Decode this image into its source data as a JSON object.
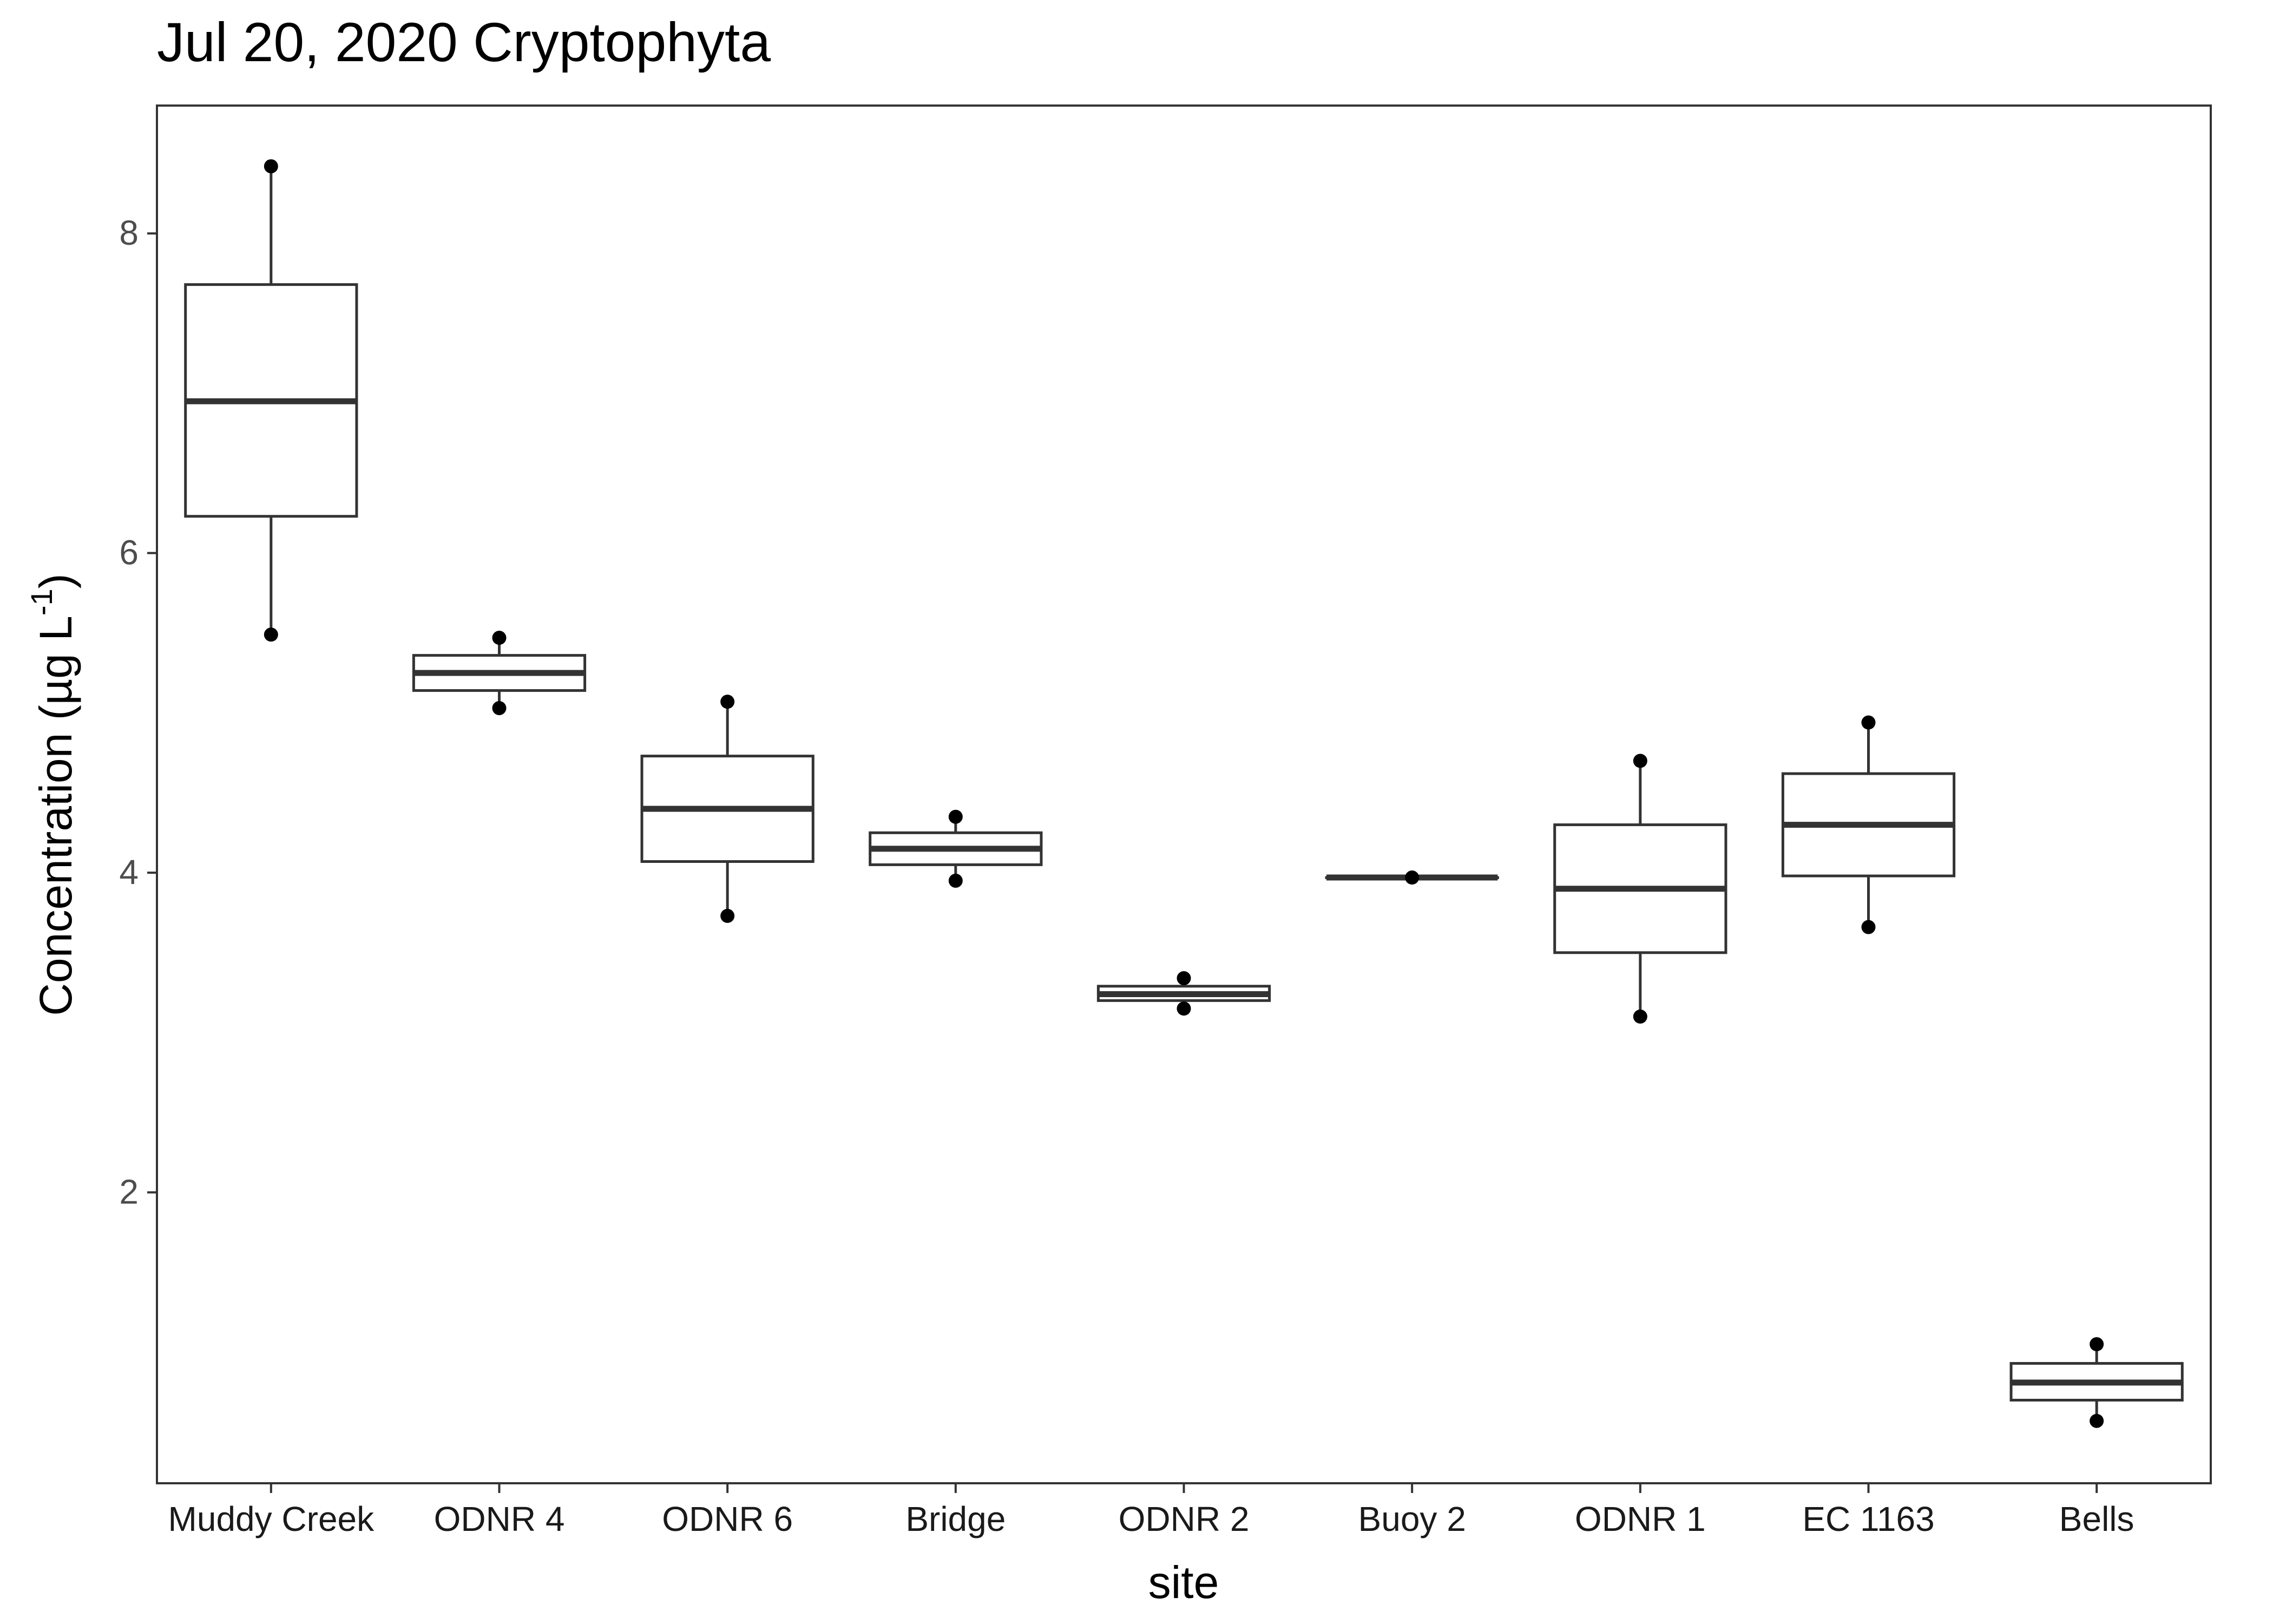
{
  "chart_data": {
    "type": "box",
    "title": "Jul 20, 2020 Cryptophyta",
    "xlabel": "site",
    "ylabel": {
      "main": "Concentration (µg L",
      "superscript": "-1",
      "close": ")"
    },
    "y_ticks": [
      2,
      4,
      6,
      8
    ],
    "y_tick_labels": [
      "2",
      "4",
      "6",
      "8"
    ],
    "ylim": [
      0.18,
      8.8
    ],
    "grid": false,
    "categories": [
      "Muddy Creek",
      "ODNR 4",
      "ODNR 6",
      "Bridge",
      "ODNR 2",
      "Buoy 2",
      "ODNR 1",
      "EC 1163",
      "Bells"
    ],
    "boxes": [
      {
        "site": "Muddy Creek",
        "min": 5.49,
        "q1": 6.23,
        "median": 6.95,
        "q3": 7.68,
        "max": 8.42,
        "points": [
          5.49,
          8.42
        ]
      },
      {
        "site": "ODNR 4",
        "min": 5.03,
        "q1": 5.14,
        "median": 5.25,
        "q3": 5.36,
        "max": 5.47,
        "points": [
          5.03,
          5.47
        ]
      },
      {
        "site": "ODNR 6",
        "min": 3.73,
        "q1": 4.07,
        "median": 4.4,
        "q3": 4.73,
        "max": 5.07,
        "points": [
          3.73,
          5.07
        ]
      },
      {
        "site": "Bridge",
        "min": 3.95,
        "q1": 4.05,
        "median": 4.15,
        "q3": 4.25,
        "max": 4.35,
        "points": [
          3.95,
          4.35
        ]
      },
      {
        "site": "ODNR 2",
        "min": 3.15,
        "q1": 3.2,
        "median": 3.24,
        "q3": 3.29,
        "max": 3.34,
        "points": [
          3.15,
          3.34
        ]
      },
      {
        "site": "Buoy 2",
        "min": 3.97,
        "q1": 3.97,
        "median": 3.97,
        "q3": 3.97,
        "max": 3.97,
        "points": [
          3.97
        ]
      },
      {
        "site": "ODNR 1",
        "min": 3.1,
        "q1": 3.5,
        "median": 3.9,
        "q3": 4.3,
        "max": 4.7,
        "points": [
          3.1,
          4.7
        ]
      },
      {
        "site": "EC 1163",
        "min": 3.66,
        "q1": 3.98,
        "median": 4.3,
        "q3": 4.62,
        "max": 4.94,
        "points": [
          3.66,
          4.94
        ]
      },
      {
        "site": "Bells",
        "min": 0.57,
        "q1": 0.7,
        "median": 0.81,
        "q3": 0.93,
        "max": 1.05,
        "points": [
          0.57,
          1.05
        ]
      }
    ],
    "colors": {
      "box_stroke": "#333333",
      "median": "#333333",
      "point": "#000000",
      "panel_border": "#333333",
      "tick": "#333333"
    }
  }
}
